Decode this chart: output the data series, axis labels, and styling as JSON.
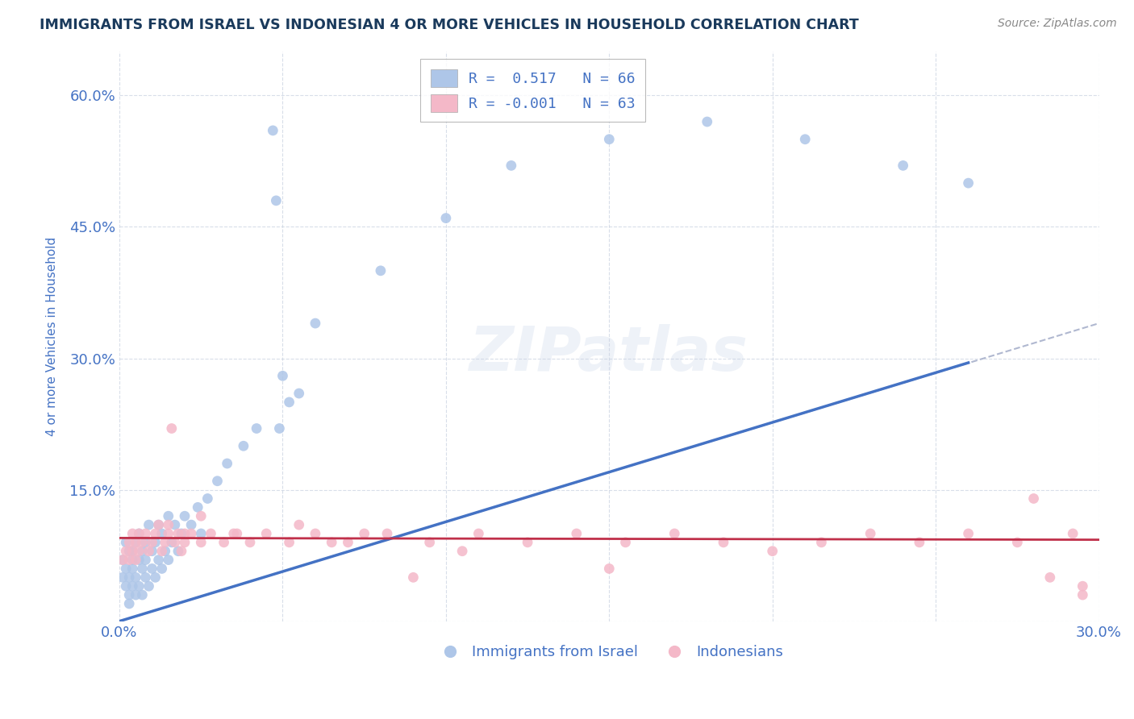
{
  "title": "IMMIGRANTS FROM ISRAEL VS INDONESIAN 4 OR MORE VEHICLES IN HOUSEHOLD CORRELATION CHART",
  "source": "Source: ZipAtlas.com",
  "xlabel": "",
  "ylabel": "4 or more Vehicles in Household",
  "xlim": [
    0.0,
    0.3
  ],
  "ylim": [
    0.0,
    0.65
  ],
  "xticks": [
    0.0,
    0.05,
    0.1,
    0.15,
    0.2,
    0.25,
    0.3
  ],
  "yticks": [
    0.0,
    0.15,
    0.3,
    0.45,
    0.6
  ],
  "legend_items": [
    {
      "label": "R =  0.517   N = 66",
      "color": "#aec6e8"
    },
    {
      "label": "R = -0.001   N = 63",
      "color": "#f4b8c8"
    }
  ],
  "series1_label": "Immigrants from Israel",
  "series2_label": "Indonesians",
  "series1_color": "#aec6e8",
  "series2_color": "#f4b8c8",
  "trend1_color": "#4472c4",
  "trend2_color": "#c0304a",
  "trend_dashed_color": "#b0b8d0",
  "watermark": "ZIPatlas",
  "background_color": "#ffffff",
  "grid_color": "#c8d0e0",
  "title_color": "#1a3a5c",
  "axis_color": "#4472c4",
  "series1_x": [
    0.001,
    0.001,
    0.002,
    0.002,
    0.002,
    0.003,
    0.003,
    0.003,
    0.003,
    0.004,
    0.004,
    0.004,
    0.004,
    0.005,
    0.005,
    0.005,
    0.006,
    0.006,
    0.006,
    0.007,
    0.007,
    0.007,
    0.008,
    0.008,
    0.008,
    0.009,
    0.009,
    0.01,
    0.01,
    0.011,
    0.011,
    0.012,
    0.012,
    0.013,
    0.013,
    0.014,
    0.015,
    0.015,
    0.016,
    0.017,
    0.018,
    0.019,
    0.02,
    0.022,
    0.024,
    0.025,
    0.027,
    0.03,
    0.033,
    0.038,
    0.042,
    0.05,
    0.06,
    0.08,
    0.1,
    0.12,
    0.15,
    0.18,
    0.21,
    0.24,
    0.26,
    0.047,
    0.048,
    0.049,
    0.052,
    0.055
  ],
  "series1_y": [
    0.05,
    0.07,
    0.04,
    0.06,
    0.09,
    0.03,
    0.05,
    0.08,
    0.02,
    0.06,
    0.08,
    0.04,
    0.07,
    0.05,
    0.09,
    0.03,
    0.07,
    0.04,
    0.1,
    0.06,
    0.08,
    0.03,
    0.07,
    0.05,
    0.09,
    0.04,
    0.11,
    0.06,
    0.08,
    0.05,
    0.09,
    0.07,
    0.11,
    0.06,
    0.1,
    0.08,
    0.07,
    0.12,
    0.09,
    0.11,
    0.08,
    0.1,
    0.12,
    0.11,
    0.13,
    0.1,
    0.14,
    0.16,
    0.18,
    0.2,
    0.22,
    0.28,
    0.34,
    0.4,
    0.46,
    0.52,
    0.55,
    0.57,
    0.55,
    0.52,
    0.5,
    0.56,
    0.48,
    0.22,
    0.25,
    0.26
  ],
  "series2_x": [
    0.001,
    0.002,
    0.003,
    0.003,
    0.004,
    0.004,
    0.005,
    0.005,
    0.006,
    0.006,
    0.007,
    0.008,
    0.009,
    0.01,
    0.011,
    0.012,
    0.013,
    0.014,
    0.015,
    0.016,
    0.017,
    0.018,
    0.019,
    0.02,
    0.022,
    0.025,
    0.028,
    0.032,
    0.036,
    0.04,
    0.045,
    0.052,
    0.06,
    0.07,
    0.082,
    0.095,
    0.11,
    0.125,
    0.14,
    0.155,
    0.17,
    0.185,
    0.2,
    0.215,
    0.23,
    0.245,
    0.26,
    0.275,
    0.285,
    0.292,
    0.295,
    0.015,
    0.02,
    0.025,
    0.035,
    0.055,
    0.065,
    0.075,
    0.09,
    0.105,
    0.15,
    0.28,
    0.295
  ],
  "series2_y": [
    0.07,
    0.08,
    0.09,
    0.07,
    0.1,
    0.08,
    0.09,
    0.07,
    0.1,
    0.08,
    0.09,
    0.1,
    0.08,
    0.09,
    0.1,
    0.11,
    0.08,
    0.09,
    0.1,
    0.22,
    0.09,
    0.1,
    0.08,
    0.09,
    0.1,
    0.09,
    0.1,
    0.09,
    0.1,
    0.09,
    0.1,
    0.09,
    0.1,
    0.09,
    0.1,
    0.09,
    0.1,
    0.09,
    0.1,
    0.09,
    0.1,
    0.09,
    0.08,
    0.09,
    0.1,
    0.09,
    0.1,
    0.09,
    0.05,
    0.1,
    0.03,
    0.11,
    0.1,
    0.12,
    0.1,
    0.11,
    0.09,
    0.1,
    0.05,
    0.08,
    0.06,
    0.14,
    0.04
  ],
  "trend1_x0": 0.0,
  "trend1_y0": 0.0,
  "trend1_x1": 0.26,
  "trend1_y1": 0.295,
  "trend_dash_x0": 0.0,
  "trend_dash_y0": 0.0,
  "trend_dash_x1": 0.3,
  "trend_dash_y1": 0.34,
  "trend2_x0": 0.0,
  "trend2_x1": 0.3,
  "trend2_y0": 0.095,
  "trend2_y1": 0.093
}
